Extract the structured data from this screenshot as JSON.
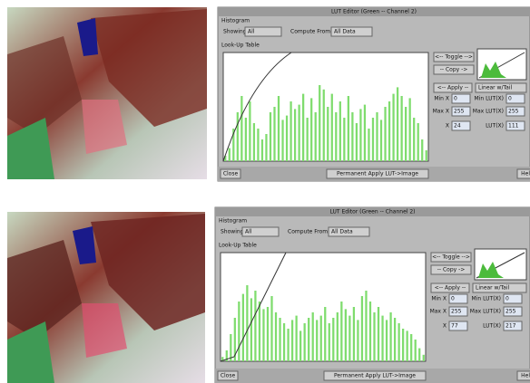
{
  "panels": [
    {
      "title": "LUT Editor (Green -- Channel 2)",
      "histogram_label": "Histogram",
      "showing_label": "Showing",
      "showing_value": "All",
      "compute_label": "Compute From",
      "compute_value": "All Data",
      "lut_label": "Look-Up Table",
      "toggle": "<-- Toggle -->",
      "copy": "-- Copy ->",
      "apply": "<-- Apply --",
      "mode": "Linear w/Tail",
      "min_x_label": "Min X",
      "min_x": 0,
      "min_lut_label": "Min LUT(X)",
      "min_lut": 0,
      "max_x_label": "Max X",
      "max_x": 255,
      "max_lut_label": "Max LUT(X)",
      "max_lut": 255,
      "x_label": "X",
      "x": 24,
      "lut_x_label": "LUT(X)",
      "lut_x": 111,
      "close": "Close",
      "permanent_apply": "Permanent Apply LUT->Image",
      "help": "Help",
      "histogram": [
        5,
        12,
        30,
        45,
        60,
        40,
        55,
        35,
        30,
        20,
        25,
        45,
        50,
        60,
        38,
        42,
        55,
        48,
        52,
        62,
        40,
        58,
        45,
        70,
        66,
        50,
        62,
        45,
        55,
        40,
        60,
        45,
        35,
        48,
        52,
        30,
        40,
        45,
        38,
        50,
        55,
        62,
        68,
        60,
        50,
        58,
        40,
        35,
        20,
        10
      ]
    },
    {
      "title": "LUT Editor (Green -- Channel 2)",
      "histogram_label": "Histogram",
      "showing_label": "Showing",
      "showing_value": "All",
      "compute_label": "Compute From",
      "compute_value": "All Data",
      "lut_label": "Look-Up Table",
      "toggle": "<-- Toggle -->",
      "copy": "-- Copy ->",
      "apply": "<-- Apply --",
      "mode": "Linear w/Tail",
      "min_x_label": "Min X",
      "min_x": 0,
      "min_lut_label": "Min LUT(X)",
      "min_lut": 0,
      "max_x_label": "Max X",
      "max_x": 255,
      "max_lut_label": "Max LUT(X)",
      "max_lut": 255,
      "x_label": "X",
      "x": 77,
      "lut_x_label": "LUT(X)",
      "lut_x": 217,
      "close": "Close",
      "permanent_apply": "Permanent Apply LUT->Image",
      "help": "Help",
      "histogram": [
        4,
        10,
        25,
        40,
        55,
        62,
        70,
        58,
        65,
        55,
        48,
        50,
        60,
        45,
        40,
        35,
        30,
        38,
        42,
        28,
        35,
        40,
        45,
        38,
        42,
        50,
        35,
        40,
        45,
        55,
        48,
        42,
        50,
        38,
        60,
        65,
        55,
        45,
        50,
        42,
        38,
        45,
        40,
        35,
        30,
        28,
        25,
        20,
        12,
        6
      ]
    }
  ]
}
